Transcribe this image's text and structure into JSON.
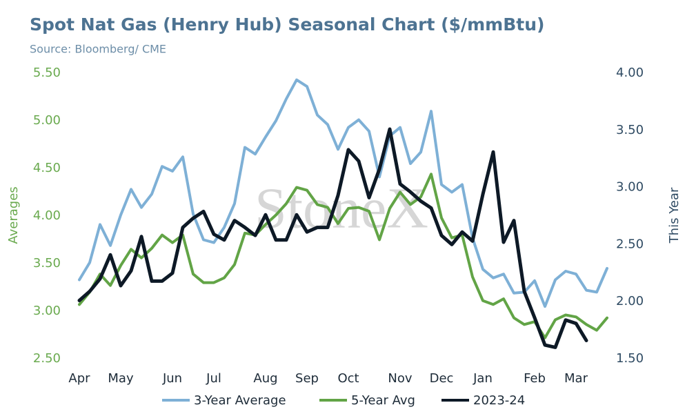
{
  "chart_data": {
    "type": "line",
    "title": "Spot Nat Gas (Henry Hub) Seasonal Chart ($/mmBtu)",
    "subtitle": "Source: Bloomberg/ CME",
    "watermark": "StoneX",
    "ylabel": "Averages",
    "y2label": "This Year",
    "x": [
      0,
      1,
      2,
      3,
      4,
      5,
      6,
      7,
      8,
      9,
      10,
      11,
      12,
      13,
      14,
      15,
      16,
      17,
      18,
      19,
      20,
      21,
      22,
      23,
      24,
      25,
      26,
      27,
      28,
      29,
      30,
      31,
      32,
      33,
      34,
      35,
      36,
      37,
      38,
      39,
      40,
      41,
      42,
      43,
      44,
      45,
      46,
      47,
      48,
      49,
      50,
      51
    ],
    "xlim": [
      0,
      51
    ],
    "xticks": [
      {
        "value": 0,
        "label": "Apr"
      },
      {
        "value": 4,
        "label": "May"
      },
      {
        "value": 9,
        "label": "Jun"
      },
      {
        "value": 13,
        "label": "Jul"
      },
      {
        "value": 18,
        "label": "Aug"
      },
      {
        "value": 22,
        "label": "Sep"
      },
      {
        "value": 26,
        "label": "Oct"
      },
      {
        "value": 31,
        "label": "Nov"
      },
      {
        "value": 35,
        "label": "Dec"
      },
      {
        "value": 39,
        "label": "Jan"
      },
      {
        "value": 44,
        "label": "Feb"
      },
      {
        "value": 48,
        "label": "Mar"
      }
    ],
    "ylim": [
      2.5,
      5.5
    ],
    "yticks": [
      {
        "value": 2.5,
        "label": "2.50"
      },
      {
        "value": 3,
        "label": "3.00"
      },
      {
        "value": 3.5,
        "label": "3.50"
      },
      {
        "value": 4,
        "label": "4.00"
      },
      {
        "value": 4.5,
        "label": "4.50"
      },
      {
        "value": 5,
        "label": "5.00"
      },
      {
        "value": 5.5,
        "label": "5.50"
      }
    ],
    "y2lim": [
      1.5,
      4.0
    ],
    "y2ticks": [
      {
        "value": 1.5,
        "label": "1.50"
      },
      {
        "value": 2,
        "label": "2.00"
      },
      {
        "value": 2.5,
        "label": "2.50"
      },
      {
        "value": 3,
        "label": "3.00"
      },
      {
        "value": 3.5,
        "label": "3.50"
      },
      {
        "value": 4,
        "label": "4.00"
      }
    ],
    "legend": "bottom",
    "grid": false,
    "series": [
      {
        "name": "3-Year Average",
        "color": "#7eb0d6",
        "axis": "y",
        "values": [
          3.33,
          3.51,
          3.91,
          3.69,
          4.01,
          4.28,
          4.09,
          4.23,
          4.52,
          4.47,
          4.62,
          4.02,
          3.75,
          3.72,
          3.88,
          4.13,
          4.72,
          4.65,
          4.83,
          5.0,
          5.23,
          5.43,
          5.36,
          5.06,
          4.96,
          4.7,
          4.93,
          5.01,
          4.89,
          4.41,
          4.84,
          4.93,
          4.55,
          4.67,
          5.1,
          4.33,
          4.25,
          4.33,
          3.77,
          3.44,
          3.35,
          3.39,
          3.19,
          3.2,
          3.32,
          3.05,
          3.33,
          3.42,
          3.39,
          3.22,
          3.2,
          3.45
        ]
      },
      {
        "name": "5-Year Avg",
        "color": "#62a446",
        "axis": "y",
        "values": [
          3.07,
          3.2,
          3.39,
          3.27,
          3.48,
          3.65,
          3.56,
          3.66,
          3.8,
          3.72,
          3.8,
          3.39,
          3.3,
          3.3,
          3.35,
          3.49,
          3.82,
          3.8,
          3.91,
          4.01,
          4.13,
          4.3,
          4.27,
          4.12,
          4.09,
          3.92,
          4.08,
          4.09,
          4.05,
          3.75,
          4.08,
          4.25,
          4.12,
          4.2,
          4.44,
          3.98,
          3.77,
          3.8,
          3.36,
          3.11,
          3.07,
          3.13,
          2.93,
          2.86,
          2.89,
          2.72,
          2.91,
          2.96,
          2.94,
          2.86,
          2.8,
          2.93
        ]
      },
      {
        "name": "2023-24",
        "color": "#0d1926",
        "axis": "y2",
        "values": [
          2.01,
          2.09,
          2.2,
          2.41,
          2.14,
          2.27,
          2.57,
          2.18,
          2.18,
          2.25,
          2.65,
          2.73,
          2.79,
          2.59,
          2.54,
          2.71,
          2.65,
          2.58,
          2.76,
          2.54,
          2.54,
          2.76,
          2.61,
          2.65,
          2.65,
          2.93,
          3.33,
          3.23,
          2.91,
          3.16,
          3.51,
          3.03,
          2.96,
          2.88,
          2.82,
          2.58,
          2.5,
          2.61,
          2.53,
          2.94,
          3.31,
          2.52,
          2.71,
          2.09,
          1.86,
          1.62,
          1.6,
          1.84,
          1.81,
          1.66,
          null,
          null
        ]
      }
    ]
  }
}
